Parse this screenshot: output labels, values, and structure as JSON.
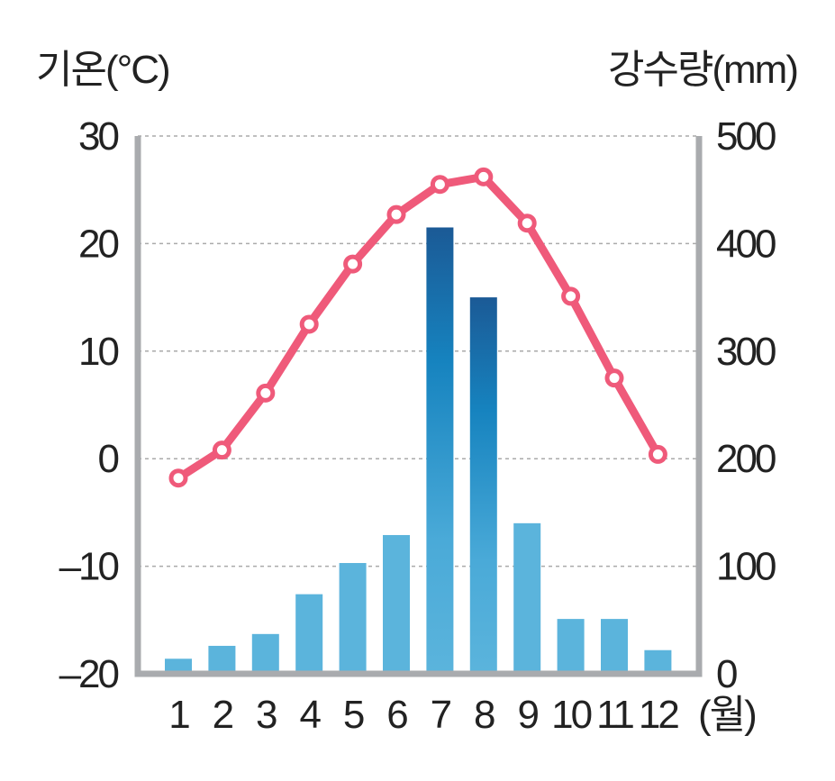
{
  "chart_data": {
    "type": "bar+line",
    "ylabel_left": "기온(°C)",
    "ylabel_right": "강수량(mm)",
    "xlabel": "(월)",
    "categories": [
      "1",
      "2",
      "3",
      "4",
      "5",
      "6",
      "7",
      "8",
      "9",
      "10",
      "11",
      "12"
    ],
    "ylim_left": [
      -20,
      30
    ],
    "ylim_right": [
      0,
      500
    ],
    "left_ticks": [
      "30",
      "20",
      "10",
      "0",
      "–10",
      "–20"
    ],
    "left_tick_values": [
      30,
      20,
      10,
      0,
      -10,
      -20
    ],
    "right_ticks": [
      "500",
      "400",
      "300",
      "200",
      "100",
      "0"
    ],
    "right_tick_values": [
      500,
      400,
      300,
      200,
      100,
      0
    ],
    "grid": true,
    "series": [
      {
        "name": "강수량",
        "type": "bar",
        "axis": "right",
        "color": "#5bb4dc",
        "values": [
          14,
          26,
          37,
          74,
          103,
          129,
          415,
          350,
          140,
          51,
          51,
          22
        ]
      },
      {
        "name": "기온",
        "type": "line",
        "axis": "left",
        "color": "#ef5a7a",
        "values": [
          -1.8,
          0.8,
          6.1,
          12.5,
          18.1,
          22.7,
          25.5,
          26.2,
          21.9,
          15.1,
          7.5,
          0.4
        ]
      }
    ]
  }
}
